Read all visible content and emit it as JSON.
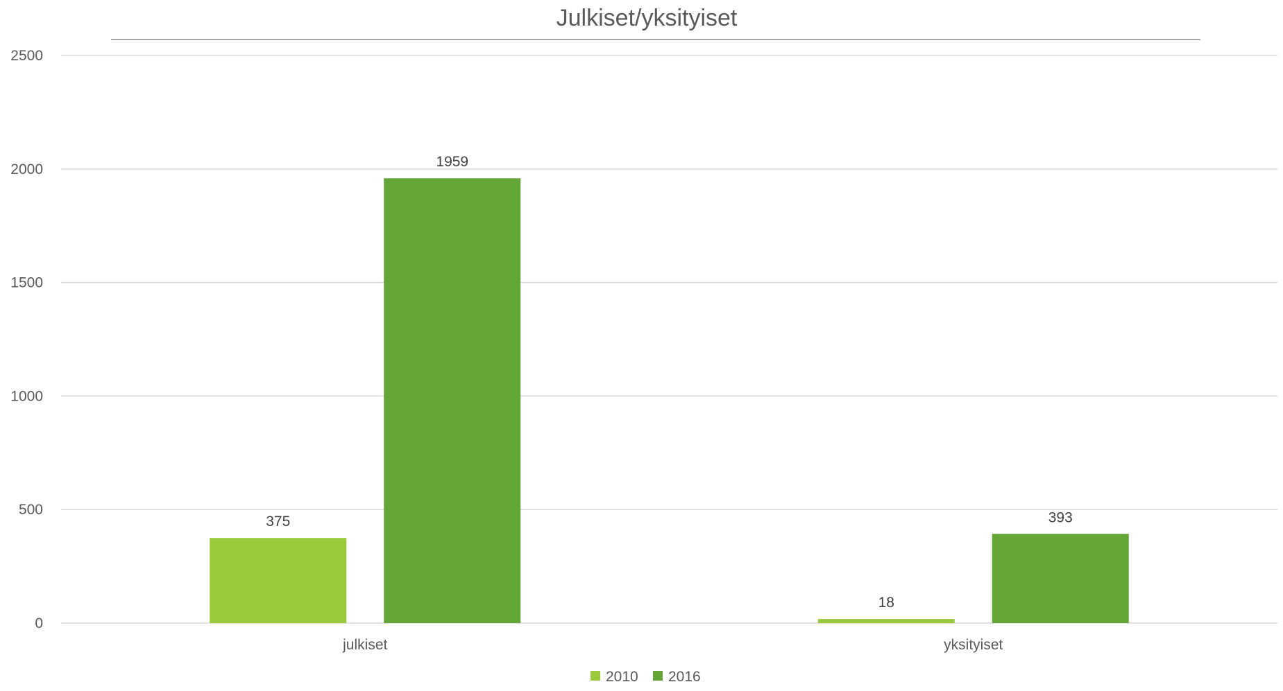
{
  "chart_data": {
    "type": "bar",
    "title": "Julkiset/yksityiset",
    "xlabel": "",
    "ylabel": "",
    "categories": [
      "julkiset",
      "yksityiset"
    ],
    "series": [
      {
        "name": "2010",
        "values": [
          375,
          18
        ],
        "color": "#9ACA3C"
      },
      {
        "name": "2016",
        "values": [
          1959,
          393
        ],
        "color": "#63A537"
      }
    ],
    "ylim": [
      0,
      2500
    ],
    "yticks": [
      "0",
      "500",
      "1000",
      "1500",
      "2000",
      "2500"
    ],
    "grid": true,
    "legend_position": "bottom",
    "data_labels": true
  }
}
